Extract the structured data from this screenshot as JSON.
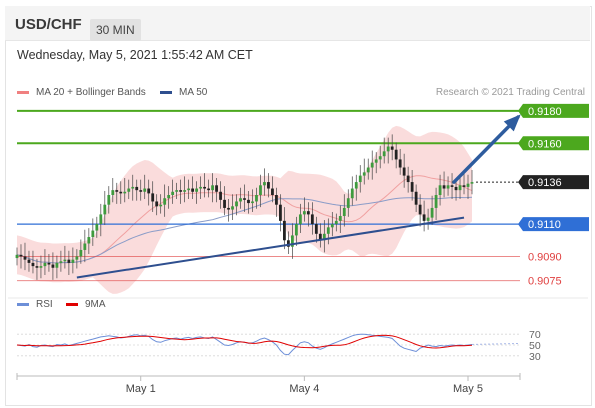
{
  "header": {
    "symbol": "USD/CHF",
    "timeframe": "30 MIN"
  },
  "datetime": "Wednesday, May 5, 2021 1:55:42 AM CET",
  "legend_top": [
    {
      "label": "MA 20 + Bollinger Bands",
      "color": "#f08080"
    },
    {
      "label": "MA 50",
      "color": "#2e4f8f"
    }
  ],
  "credit": "Research © 2021 Trading Central",
  "legend_bottom": [
    {
      "label": "RSI",
      "color": "#6d8fd8"
    },
    {
      "label": "9MA",
      "color": "#e00000"
    }
  ],
  "colors": {
    "up": "#3e9b3e",
    "down": "#222222",
    "resistance": "#4ca81e",
    "support": "#2f6fd6",
    "target": "#e04040",
    "last": "#222222",
    "arrow": "#2e5c9e",
    "trend": "#2e4f8f",
    "band": "#f8d0d0"
  },
  "chart_data": {
    "type": "candlestick",
    "y_range": [
      0.9068,
      0.9188
    ],
    "price_levels": [
      {
        "value": "0.9180",
        "kind": "resistance"
      },
      {
        "value": "0.9160",
        "kind": "resistance"
      },
      {
        "value": "0.9136",
        "kind": "last"
      },
      {
        "value": "0.9110",
        "kind": "support"
      },
      {
        "value": "0.9090",
        "kind": "target"
      },
      {
        "value": "0.9075",
        "kind": "target"
      }
    ],
    "x_labels": [
      {
        "label": "May 1",
        "index": 31
      },
      {
        "label": "May 4",
        "index": 72
      },
      {
        "label": "May 5",
        "index": 113
      }
    ],
    "trendline": [
      {
        "i": 15,
        "v": 0.9077
      },
      {
        "i": 112,
        "v": 0.9114
      }
    ],
    "forecast_arrow": [
      {
        "i": 109,
        "v": 0.9136
      },
      {
        "i": 126,
        "v": 0.9178
      }
    ],
    "closes": [
      0.9091,
      0.909,
      0.9088,
      0.9086,
      0.9084,
      0.9083,
      0.9084,
      0.9086,
      0.9085,
      0.9083,
      0.9086,
      0.9087,
      0.9088,
      0.9086,
      0.9088,
      0.909,
      0.9094,
      0.9098,
      0.9102,
      0.9106,
      0.911,
      0.9116,
      0.9122,
      0.9128,
      0.9131,
      0.913,
      0.9129,
      0.913,
      0.9132,
      0.9133,
      0.9131,
      0.913,
      0.9132,
      0.9129,
      0.9124,
      0.9121,
      0.9122,
      0.9126,
      0.9128,
      0.913,
      0.9131,
      0.913,
      0.9131,
      0.9132,
      0.913,
      0.9132,
      0.9133,
      0.9132,
      0.9131,
      0.9134,
      0.913,
      0.9125,
      0.912,
      0.9119,
      0.9121,
      0.9124,
      0.9126,
      0.9125,
      0.9123,
      0.9124,
      0.9128,
      0.9134,
      0.9136,
      0.9132,
      0.9128,
      0.9122,
      0.9112,
      0.91,
      0.9096,
      0.9103,
      0.911,
      0.9116,
      0.9118,
      0.9116,
      0.911,
      0.9104,
      0.91,
      0.9104,
      0.9108,
      0.911,
      0.9112,
      0.9115,
      0.912,
      0.9126,
      0.9132,
      0.9136,
      0.914,
      0.9142,
      0.9145,
      0.9148,
      0.915,
      0.9152,
      0.9155,
      0.9158,
      0.9156,
      0.915,
      0.9145,
      0.914,
      0.9136,
      0.913,
      0.9122,
      0.9116,
      0.9112,
      0.9114,
      0.912,
      0.9128,
      0.9134,
      0.9132,
      0.9134,
      0.9133,
      0.9131,
      0.9134,
      0.9133,
      0.9135,
      0.9136
    ],
    "rsi_ticks": [
      70,
      50,
      30
    ],
    "rsi": [
      50,
      49,
      48,
      51,
      47,
      46,
      49,
      50,
      48,
      47,
      51,
      50,
      52,
      49,
      51,
      53,
      55,
      57,
      59,
      61,
      63,
      65,
      66,
      67,
      66,
      65,
      63,
      64,
      66,
      68,
      69,
      67,
      68,
      66,
      60,
      56,
      55,
      58,
      60,
      62,
      63,
      61,
      63,
      64,
      62,
      64,
      65,
      63,
      62,
      65,
      60,
      55,
      50,
      49,
      51,
      54,
      56,
      55,
      53,
      54,
      57,
      61,
      63,
      60,
      56,
      50,
      40,
      33,
      32,
      40,
      47,
      54,
      56,
      54,
      48,
      44,
      42,
      45,
      49,
      52,
      55,
      58,
      61,
      64,
      67,
      69,
      70,
      70,
      69,
      68,
      67,
      66,
      65,
      64,
      62,
      55,
      48,
      44,
      42,
      40,
      38,
      44,
      47,
      50,
      48,
      47,
      49,
      48,
      49,
      50,
      49,
      50,
      49,
      50,
      51
    ]
  }
}
